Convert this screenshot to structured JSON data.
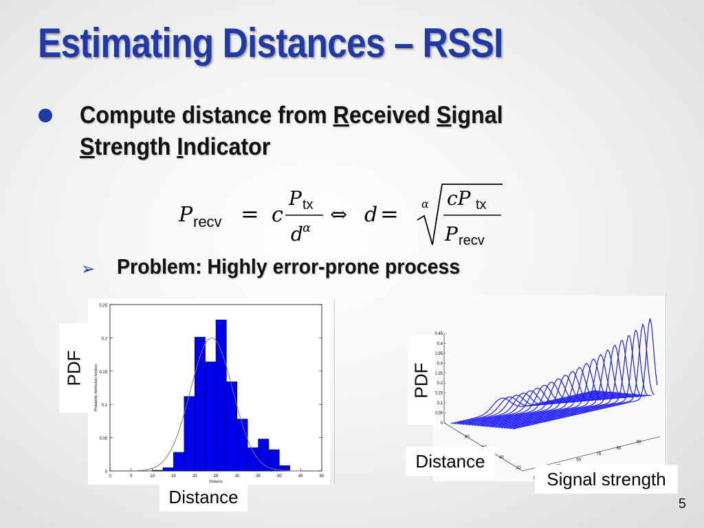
{
  "slide": {
    "title": "Estimating Distances – RSSI",
    "bullet": {
      "prefix": "Compute distance from ",
      "r_letter": "R",
      "r_rest": "eceived ",
      "s_letter": "S",
      "s_rest": "ignal",
      "s2_letter": "S",
      "s2_rest": "trength ",
      "i_letter": "I",
      "i_rest": "ndicator"
    },
    "formula": {
      "lhs_symbol": "P",
      "lhs_sub": "recv",
      "eq": "=",
      "c": "c",
      "num_symbol": "P",
      "num_sub": "tx",
      "den": "d",
      "den_exp": "α",
      "iff": "⇔",
      "d": "d",
      "root_index": "α",
      "root_num": "cP",
      "root_num_sub": "tx",
      "root_den": "P",
      "root_den_sub": "recv"
    },
    "subbullet": "Problem: Highly error-prone process",
    "page_number": "5"
  },
  "labels": {
    "left_pdf": "PDF",
    "left_distance": "Distance",
    "right_pdf": "PDF",
    "right_distance": "Distance",
    "right_signal": "Signal strength"
  },
  "chart_data": [
    {
      "type": "bar",
      "xlabel": "Distance",
      "ylabel": "Probability distribution function",
      "xlim": [
        0,
        50
      ],
      "ylim": [
        0,
        0.25
      ],
      "x_ticks": [
        "0",
        "5",
        "10",
        "15",
        "20",
        "25",
        "30",
        "35",
        "40",
        "45",
        "50"
      ],
      "y_ticks": [
        "0",
        "0.05",
        "0.1",
        "0.15",
        "0.2",
        "0.25"
      ],
      "bin_edges": [
        10,
        12.5,
        15,
        17.5,
        20,
        22.5,
        25,
        27.5,
        30,
        32.5,
        35,
        37.5,
        40,
        42.5
      ],
      "values": [
        0.001,
        0.005,
        0.028,
        0.112,
        0.201,
        0.164,
        0.227,
        0.134,
        0.078,
        0.035,
        0.048,
        0.032,
        0.008,
        0.004
      ],
      "fit_curve": {
        "type": "gaussian",
        "mean": 24,
        "std": 5
      }
    },
    {
      "type": "line",
      "projection": "3d-waterfall",
      "z_ticks": [
        "0",
        "0.05",
        "0.1",
        "0.15",
        "0.2",
        "0.25",
        "0.3",
        "0.35",
        "0.4",
        "0.45"
      ],
      "x_ticks": [
        "80",
        "60",
        "40",
        "20",
        "0"
      ],
      "y_ticks": [
        "25",
        "50",
        "75",
        "85",
        "90"
      ],
      "series_count": 22
    }
  ],
  "colors": {
    "title": "#1f3aa8",
    "bar": "#0000ee",
    "curve": "#777777",
    "waterfall": "#1a1aff"
  }
}
